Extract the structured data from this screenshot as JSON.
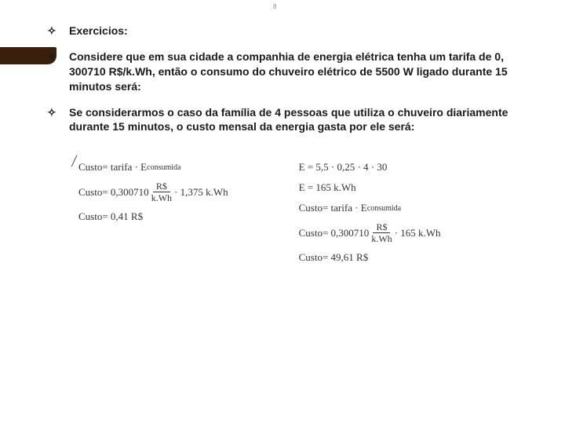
{
  "page_number": "8",
  "accent_color": "#3a1f0d",
  "bullets": {
    "b1": "Exercicios:",
    "b2": "Considere que em sua cidade a companhia de energia elétrica tenha um tarifa de 0, 300710 R$/k.Wh, então o consumo do chuveiro elétrico de 5500 W ligado durante 15 minutos será:",
    "b3": "Se considerarmos o caso da família de 4 pessoas que utiliza o chuveiro diariamente durante 15 minutos, o custo mensal da energia gasta por ele será:"
  },
  "formulas_left": {
    "l1_lhs": "Custo",
    "l1_eq": " = tarifa · E",
    "l1_sub": "consumida",
    "l2_lhs": "Custo",
    "l2_val": " = 0,300710 ",
    "l2_frac_num": "R$",
    "l2_frac_den": "k.Wh",
    "l2_tail": " · 1,375 k.Wh",
    "l3_lhs": "Custo",
    "l3_val": " = 0,41 R$"
  },
  "formulas_right": {
    "r1": "E = 5,5 · 0,25 · 4 · 30",
    "r2": "E = 165 k.Wh",
    "r3_lhs": "Custo",
    "r3_eq": " = tarifa · E",
    "r3_sub": "consumida",
    "r4_lhs": "Custo",
    "r4_val": " = 0,300710 ",
    "r4_frac_num": "R$",
    "r4_frac_den": "k.Wh",
    "r4_tail": " · 165 k.Wh",
    "r5_lhs": "Custo",
    "r5_val": " = 49,61 R$"
  }
}
